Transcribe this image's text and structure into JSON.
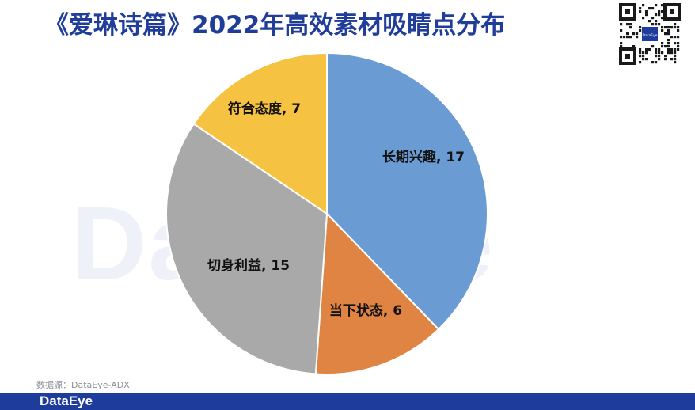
{
  "title": "《爱琳诗篇》2022年高效素材吸睛点分布",
  "watermark": "DataEye",
  "source": "数据源：DataEye-ADX",
  "footer_logo": "DataEye",
  "qr_label": "DataEye",
  "chart_data": {
    "type": "pie",
    "title": "《爱琳诗篇》2022年高效素材吸睛点分布",
    "start": "12 o'clock",
    "direction": "clockwise",
    "slices": [
      {
        "label": "长期兴趣",
        "value": 17,
        "color": "#6a9bd3"
      },
      {
        "label": "当下状态",
        "value": 6,
        "color": "#e08443"
      },
      {
        "label": "切身利益",
        "value": 15,
        "color": "#a9a9a9"
      },
      {
        "label": "符合态度",
        "value": 7,
        "color": "#f5c242"
      }
    ]
  }
}
